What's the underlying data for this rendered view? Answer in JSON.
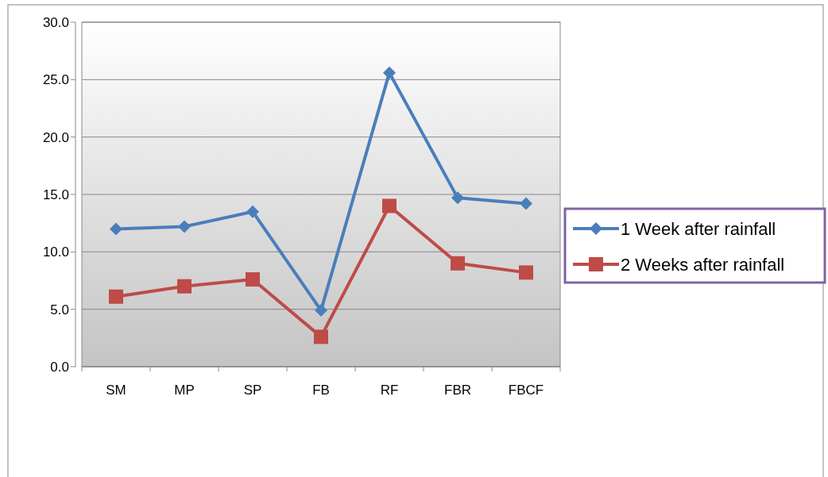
{
  "chart_data": {
    "type": "line",
    "categories": [
      "SM",
      "MP",
      "SP",
      "FB",
      "RF",
      "FBR",
      "FBCF"
    ],
    "series": [
      {
        "name": "1 Week after rainfall",
        "color": "#4a7ebb",
        "marker": "diamond",
        "values": [
          12.0,
          12.2,
          13.5,
          4.9,
          25.6,
          14.7,
          14.2
        ]
      },
      {
        "name": "2 Weeks after rainfall",
        "color": "#be4b48",
        "marker": "square",
        "values": [
          6.1,
          7.0,
          7.6,
          2.6,
          14.0,
          9.0,
          8.2
        ]
      }
    ],
    "ylim": [
      0,
      30
    ],
    "yticks": [
      {
        "value": 0,
        "label": "0.0"
      },
      {
        "value": 5,
        "label": "5.0"
      },
      {
        "value": 10,
        "label": "10.0"
      },
      {
        "value": 15,
        "label": "15.0"
      },
      {
        "value": 20,
        "label": "20.0"
      },
      {
        "value": 25,
        "label": "25.0"
      },
      {
        "value": 30,
        "label": "30.0"
      }
    ],
    "grid": "y",
    "legend": "right"
  }
}
